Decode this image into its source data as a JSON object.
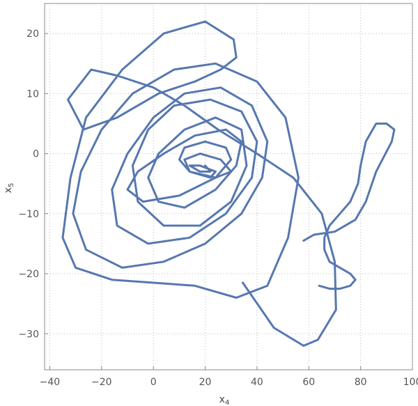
{
  "chart_data": {
    "type": "line",
    "title": "",
    "xlabel": "x",
    "xlabel_sub": "4",
    "ylabel": "x",
    "ylabel_sub": "5",
    "xlim": [
      -42,
      100
    ],
    "ylim": [
      -36,
      25
    ],
    "grid": true,
    "x_ticks": [
      -40,
      -20,
      0,
      20,
      40,
      60,
      80,
      100
    ],
    "y_ticks": [
      -30,
      -20,
      -10,
      0,
      10,
      20
    ],
    "x_tick_labels": [
      "−40",
      "−20",
      "0",
      "20",
      "40",
      "60",
      "80",
      "100"
    ],
    "y_tick_labels": [
      "−30",
      "−20",
      "−10",
      "0",
      "10",
      "20"
    ],
    "series": [
      {
        "color": "#5677AF",
        "x": [
          34.5,
          46.5,
          58,
          63.5,
          70.5,
          70,
          65,
          54,
          40,
          25,
          12,
          0,
          -14,
          -24,
          -33,
          -27,
          -14,
          2,
          16,
          26,
          32,
          31,
          20,
          4,
          -12,
          -26,
          -32,
          -35,
          -30,
          -16,
          0,
          16,
          32,
          44,
          52,
          56,
          51,
          40,
          24,
          8,
          -8,
          -20,
          -28,
          -31,
          -26,
          -12,
          4,
          20,
          34,
          42,
          44,
          38,
          26,
          12,
          0,
          -10,
          -16,
          -14,
          -2,
          14,
          28,
          38,
          40,
          34,
          22,
          8,
          -2,
          -8,
          -6,
          4,
          18,
          30,
          36,
          34,
          24,
          12,
          2,
          -2,
          2,
          12,
          24,
          32,
          34,
          28,
          16,
          4,
          -6,
          -10,
          -4,
          10,
          24,
          30,
          28,
          20,
          12,
          10,
          14,
          24,
          30,
          26,
          18,
          12,
          14,
          22,
          24,
          18,
          14,
          18,
          22,
          20
        ],
        "y": [
          -21.5,
          -29,
          -32,
          -31,
          -26,
          -18,
          -10,
          -4,
          0,
          4,
          8,
          11,
          13,
          14,
          9,
          4,
          6,
          10,
          12,
          14,
          16,
          19,
          22,
          20,
          14,
          6,
          -4,
          -14,
          -19,
          -21,
          -21.5,
          -22,
          -24,
          -22,
          -14,
          -4,
          6,
          12,
          15,
          14,
          10,
          4,
          -3,
          -10,
          -16,
          -19,
          -18,
          -15,
          -10,
          -4,
          2,
          8,
          11,
          10,
          6,
          0,
          -6,
          -12,
          -15,
          -14,
          -10,
          -4,
          2,
          7,
          9,
          8,
          4,
          -2,
          -8,
          -12,
          -12,
          -8,
          -2,
          4,
          6,
          4,
          0,
          -4,
          -8,
          -9,
          -6,
          -2,
          2,
          4,
          3,
          0,
          -3,
          -6,
          -8,
          -7,
          -4,
          -1,
          1,
          2,
          1,
          -1,
          -3,
          -4,
          -3,
          -1,
          0,
          -1,
          -3,
          -4,
          -3,
          -2,
          -2,
          -3,
          -3,
          -2
        ]
      },
      {
        "color": "#5677AF",
        "x": [
          58,
          62,
          70,
          78,
          82,
          86,
          92,
          93,
          90,
          86,
          82,
          80,
          79,
          78,
          76,
          72,
          68,
          66,
          66,
          68,
          72,
          76,
          78,
          76,
          72,
          68,
          64
        ],
        "y": [
          -14.5,
          -13.5,
          -13,
          -11,
          -8,
          -3,
          2,
          4,
          5,
          5,
          2,
          -2,
          -5,
          -6,
          -8,
          -10,
          -12,
          -14,
          -16,
          -18,
          -19,
          -20,
          -21,
          -22,
          -22.5,
          -22.5,
          -22
        ]
      }
    ]
  }
}
